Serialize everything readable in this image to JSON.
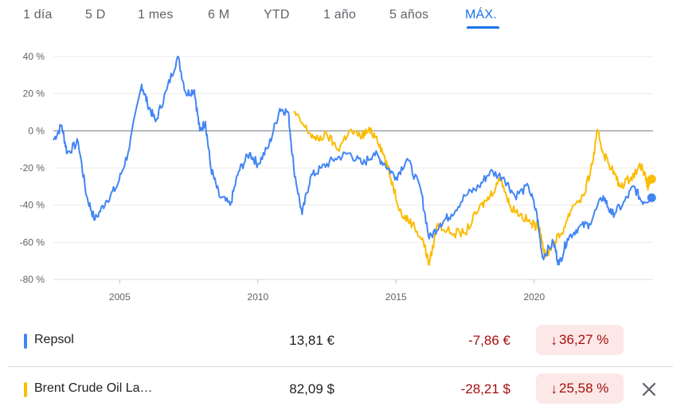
{
  "tabs": [
    "1 día",
    "5 D",
    "1 mes",
    "6 M",
    "YTD",
    "1 año",
    "5 años",
    "MÁX."
  ],
  "active_tab": "MÁX.",
  "colors": {
    "repsol": "#4285f4",
    "brent": "#fbbc04",
    "accent": "#1a73e8",
    "negative": "#a50e0e",
    "negative_bg": "#fce8e6"
  },
  "chart_data": {
    "type": "line",
    "y_ticks": [
      "40 %",
      "20 %",
      "0 %",
      "-20 %",
      "-40 %",
      "-60 %",
      "-80 %"
    ],
    "ylim": [
      -80,
      40
    ],
    "x_ticks": [
      "2005",
      "2010",
      "2015",
      "2020"
    ],
    "x_tick_values": [
      2005,
      2010,
      2015,
      2020
    ],
    "xlim": [
      2002.6,
      2024.3
    ],
    "series": [
      {
        "name": "Repsol",
        "color": "#4285f4",
        "points": [
          [
            2002.6,
            -5
          ],
          [
            2002.9,
            3
          ],
          [
            2003.1,
            -12
          ],
          [
            2003.5,
            -6
          ],
          [
            2003.8,
            -35
          ],
          [
            2004.1,
            -48
          ],
          [
            2004.5,
            -38
          ],
          [
            2004.9,
            -30
          ],
          [
            2005.3,
            -12
          ],
          [
            2005.8,
            25
          ],
          [
            2006.0,
            15
          ],
          [
            2006.3,
            5
          ],
          [
            2006.7,
            22
          ],
          [
            2007.1,
            40
          ],
          [
            2007.4,
            20
          ],
          [
            2007.7,
            22
          ],
          [
            2007.9,
            0
          ],
          [
            2008.1,
            5
          ],
          [
            2008.3,
            -20
          ],
          [
            2008.6,
            -35
          ],
          [
            2009.0,
            -40
          ],
          [
            2009.3,
            -22
          ],
          [
            2009.7,
            -12
          ],
          [
            2010.0,
            -18
          ],
          [
            2010.4,
            -8
          ],
          [
            2010.8,
            12
          ],
          [
            2011.1,
            10
          ],
          [
            2011.3,
            -20
          ],
          [
            2011.6,
            -45
          ],
          [
            2011.9,
            -25
          ],
          [
            2012.3,
            -20
          ],
          [
            2012.8,
            -15
          ],
          [
            2013.3,
            -12
          ],
          [
            2013.8,
            -18
          ],
          [
            2014.2,
            -12
          ],
          [
            2014.6,
            -18
          ],
          [
            2015.0,
            -25
          ],
          [
            2015.4,
            -15
          ],
          [
            2015.9,
            -32
          ],
          [
            2016.2,
            -58
          ],
          [
            2016.6,
            -50
          ],
          [
            2017.0,
            -45
          ],
          [
            2017.5,
            -35
          ],
          [
            2018.0,
            -30
          ],
          [
            2018.4,
            -22
          ],
          [
            2018.9,
            -25
          ],
          [
            2019.3,
            -35
          ],
          [
            2019.8,
            -30
          ],
          [
            2020.1,
            -45
          ],
          [
            2020.3,
            -68
          ],
          [
            2020.7,
            -60
          ],
          [
            2020.9,
            -72
          ],
          [
            2021.2,
            -58
          ],
          [
            2021.6,
            -52
          ],
          [
            2022.0,
            -50
          ],
          [
            2022.5,
            -35
          ],
          [
            2022.8,
            -45
          ],
          [
            2023.2,
            -40
          ],
          [
            2023.6,
            -30
          ],
          [
            2023.9,
            -38
          ],
          [
            2024.25,
            -36
          ]
        ]
      },
      {
        "name": "Brent Crude Oil La…",
        "color": "#fbbc04",
        "points": [
          [
            2011.3,
            10
          ],
          [
            2011.7,
            2
          ],
          [
            2012.1,
            -5
          ],
          [
            2012.5,
            -2
          ],
          [
            2012.9,
            -10
          ],
          [
            2013.3,
            0
          ],
          [
            2013.7,
            -3
          ],
          [
            2014.0,
            0
          ],
          [
            2014.3,
            -3
          ],
          [
            2014.6,
            -15
          ],
          [
            2014.9,
            -30
          ],
          [
            2015.2,
            -45
          ],
          [
            2015.6,
            -50
          ],
          [
            2016.0,
            -60
          ],
          [
            2016.2,
            -72
          ],
          [
            2016.5,
            -50
          ],
          [
            2017.0,
            -55
          ],
          [
            2017.5,
            -55
          ],
          [
            2018.0,
            -42
          ],
          [
            2018.4,
            -35
          ],
          [
            2018.8,
            -25
          ],
          [
            2019.1,
            -40
          ],
          [
            2019.5,
            -45
          ],
          [
            2019.9,
            -50
          ],
          [
            2020.2,
            -52
          ],
          [
            2020.4,
            -68
          ],
          [
            2020.7,
            -60
          ],
          [
            2021.0,
            -55
          ],
          [
            2021.4,
            -40
          ],
          [
            2021.8,
            -35
          ],
          [
            2022.1,
            -18
          ],
          [
            2022.3,
            0
          ],
          [
            2022.5,
            -12
          ],
          [
            2022.8,
            -20
          ],
          [
            2023.1,
            -30
          ],
          [
            2023.5,
            -25
          ],
          [
            2023.9,
            -18
          ],
          [
            2024.1,
            -30
          ],
          [
            2024.25,
            -26
          ]
        ]
      }
    ]
  },
  "rows": [
    {
      "name": "Repsol",
      "price": "13,81 €",
      "change": "-7,86 €",
      "percent": "36,27 %",
      "arrow": "↓",
      "color": "#4285f4"
    },
    {
      "name": "Brent Crude Oil La…",
      "price": "82,09 $",
      "change": "-28,21 $",
      "percent": "25,58 %",
      "arrow": "↓",
      "color": "#fbbc04",
      "close_icon": "close-icon"
    }
  ]
}
